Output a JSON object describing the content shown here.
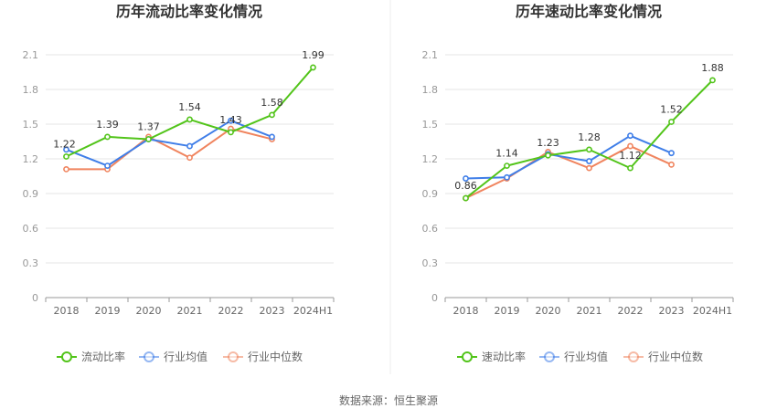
{
  "source_label": "数据来源：恒生聚源",
  "chart_data": [
    {
      "type": "line",
      "title": "历年流动比率变化情况",
      "categories": [
        "2018",
        "2019",
        "2020",
        "2021",
        "2022",
        "2023",
        "2024H1"
      ],
      "ylim": [
        0,
        2.1
      ],
      "yticks": [
        0,
        0.3,
        0.6,
        0.9,
        1.2,
        1.5,
        1.8,
        2.1
      ],
      "ytick_labels": [
        "0",
        "0.3",
        "0.6",
        "0.9",
        "1.2",
        "1.5",
        "1.8",
        "2.1"
      ],
      "grid": true,
      "legend_position": "bottom",
      "series": [
        {
          "name": "流动比率",
          "color": "#52c41a",
          "values": [
            1.22,
            1.39,
            1.37,
            1.54,
            1.43,
            1.58,
            1.99
          ],
          "labels": [
            "1.22",
            "1.39",
            "1.37",
            "1.54",
            "1.43",
            "1.58",
            "1.99"
          ]
        },
        {
          "name": "行业均值",
          "color": "#3f7ee8",
          "values": [
            1.28,
            1.14,
            1.37,
            1.31,
            1.53,
            1.39,
            null
          ]
        },
        {
          "name": "行业中位数",
          "color": "#f0845e",
          "values": [
            1.11,
            1.11,
            1.39,
            1.21,
            1.46,
            1.37,
            null
          ]
        }
      ]
    },
    {
      "type": "line",
      "title": "历年速动比率变化情况",
      "categories": [
        "2018",
        "2019",
        "2020",
        "2021",
        "2022",
        "2023",
        "2024H1"
      ],
      "ylim": [
        0,
        2.1
      ],
      "yticks": [
        0,
        0.3,
        0.6,
        0.9,
        1.2,
        1.5,
        1.8,
        2.1
      ],
      "ytick_labels": [
        "0",
        "0.3",
        "0.6",
        "0.9",
        "1.2",
        "1.5",
        "1.8",
        "2.1"
      ],
      "grid": true,
      "legend_position": "bottom",
      "series": [
        {
          "name": "速动比率",
          "color": "#52c41a",
          "values": [
            0.86,
            1.14,
            1.23,
            1.28,
            1.12,
            1.52,
            1.88
          ],
          "labels": [
            "0.86",
            "1.14",
            "1.23",
            "1.28",
            "1.12",
            "1.52",
            "1.88"
          ]
        },
        {
          "name": "行业均值",
          "color": "#3f7ee8",
          "values": [
            1.03,
            1.04,
            1.24,
            1.18,
            1.4,
            1.25,
            null
          ]
        },
        {
          "name": "行业中位数",
          "color": "#f0845e",
          "values": [
            0.86,
            1.03,
            1.26,
            1.12,
            1.31,
            1.15,
            null
          ]
        }
      ]
    }
  ]
}
